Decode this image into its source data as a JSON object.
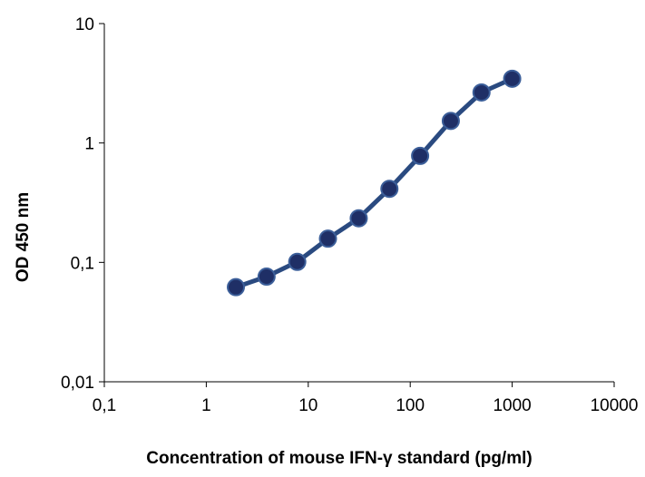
{
  "chart_data": {
    "type": "line",
    "title": "",
    "xlabel": "Concentration of mouse IFN-γ standard (pg/ml)",
    "ylabel": "OD 450 nm",
    "xscale": "log",
    "yscale": "log",
    "xlim": [
      0.1,
      10000
    ],
    "ylim": [
      0.01,
      10
    ],
    "x_tick_labels": [
      "0,1",
      "1",
      "10",
      "100",
      "1000",
      "10000"
    ],
    "y_tick_labels": [
      "0,01",
      "0,1",
      "1",
      "10"
    ],
    "grid": false,
    "legend": "none",
    "series_color": "#2a4a80",
    "marker_color": "#1f2f66",
    "series": [
      {
        "x": [
          1.95,
          3.9,
          7.8,
          15.6,
          31.25,
          62.5,
          125,
          250,
          500,
          1000
        ],
        "y": [
          0.062,
          0.076,
          0.101,
          0.158,
          0.234,
          0.413,
          0.78,
          1.53,
          2.65,
          3.45
        ]
      }
    ]
  }
}
